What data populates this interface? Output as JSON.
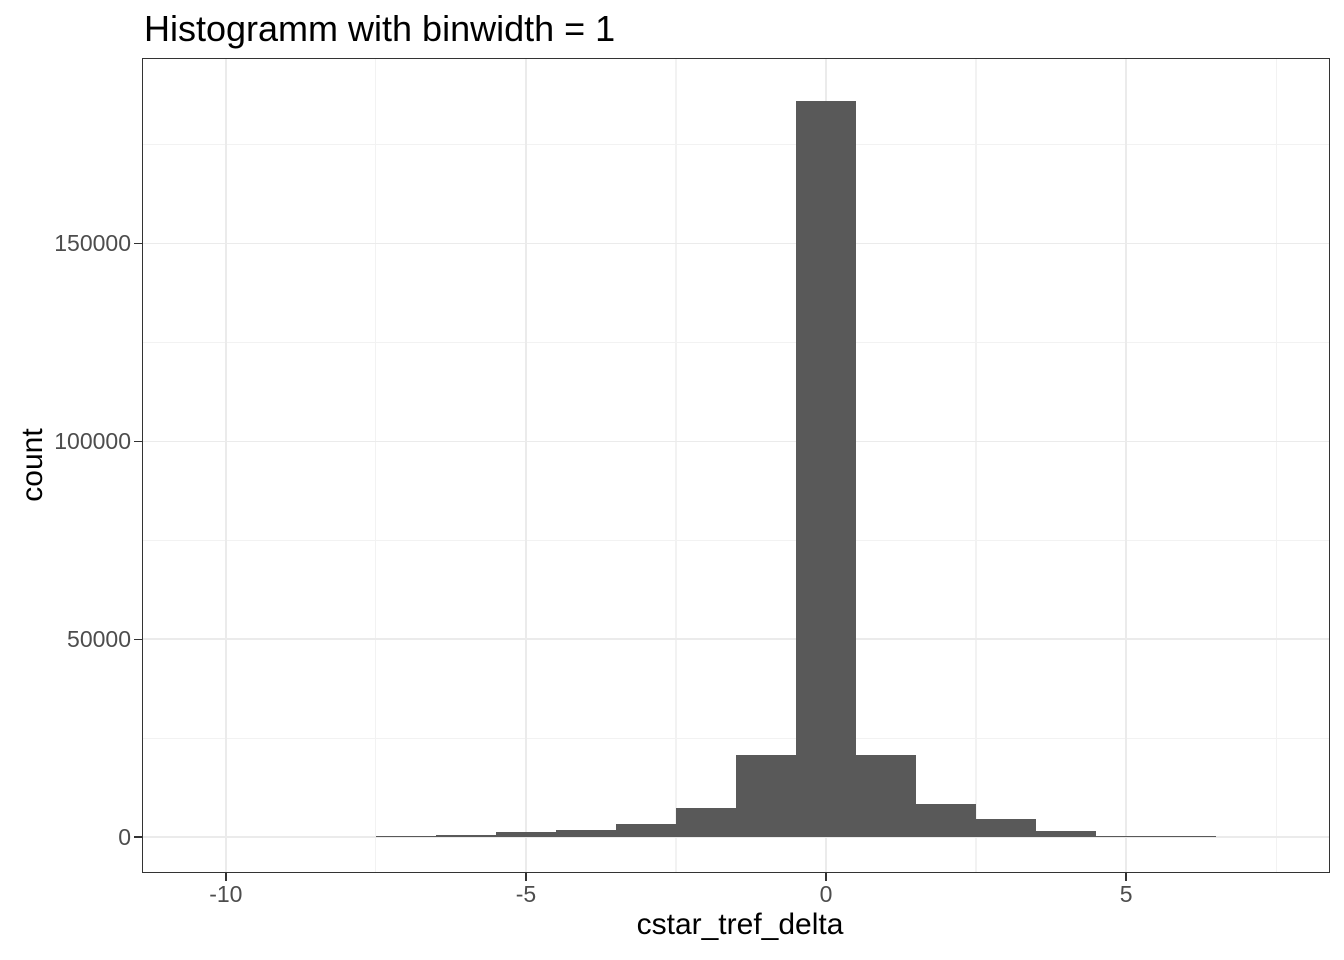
{
  "chart_data": {
    "type": "bar",
    "subtype": "histogram",
    "title": "Histogramm with binwidth = 1",
    "xlabel": "cstar_tref_delta",
    "ylabel": "count",
    "binwidth": 1,
    "grid": true,
    "legend": "none",
    "bins": [
      {
        "center": -7,
        "count": 400
      },
      {
        "center": -6,
        "count": 600
      },
      {
        "center": -5,
        "count": 1300
      },
      {
        "center": -4,
        "count": 1900
      },
      {
        "center": -3,
        "count": 3300
      },
      {
        "center": -2,
        "count": 7300
      },
      {
        "center": -1,
        "count": 20700
      },
      {
        "center": 0,
        "count": 186000
      },
      {
        "center": 1,
        "count": 20700
      },
      {
        "center": 2,
        "count": 8300
      },
      {
        "center": 3,
        "count": 4500
      },
      {
        "center": 4,
        "count": 1600
      },
      {
        "center": 5,
        "count": 350
      },
      {
        "center": 6,
        "count": 250
      }
    ],
    "x_axis": {
      "lim": [
        -11.38,
        8.38
      ],
      "ticks": [
        -10,
        -5,
        0,
        5
      ],
      "tick_labels": [
        "-10",
        "-5",
        "0",
        "5"
      ],
      "minor_gridlines": [
        -7.5,
        -2.5,
        2.5,
        7.5
      ]
    },
    "y_axis": {
      "lim": [
        -8800,
        196600
      ],
      "ticks": [
        0,
        50000,
        100000,
        150000
      ],
      "tick_labels": [
        "0",
        "50000",
        "100000",
        "150000"
      ],
      "minor_gridlines": [
        25000,
        75000,
        125000,
        175000
      ]
    },
    "colors": {
      "bar_fill": "#595959",
      "panel_border": "#333333",
      "grid_major": "#EBEBEB",
      "grid_minor": "#F2F2F2",
      "tick_mark": "#333333",
      "tick_label": "#4D4D4D",
      "title_text": "#000000",
      "background": "#FFFFFF"
    }
  }
}
